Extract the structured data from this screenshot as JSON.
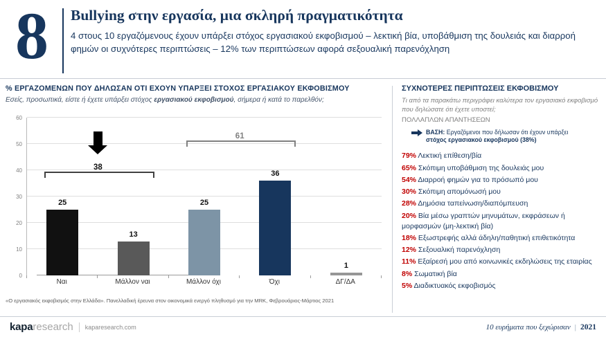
{
  "header": {
    "number": "8",
    "title": "Bullying στην εργασία, μια σκληρή πραγματικότητα",
    "subtitle": "4 στους 10 εργαζόμενους έχουν υπάρξει στόχος εργασιακού εκφοβισμού – λεκτική βία, υποβάθμιση της δουλειάς και διαρροή φημών οι συχνότερες περιπτώσεις – 12% των περιπτώσεων αφορά σεξουαλική παρενόχληση"
  },
  "chart_section": {
    "title": "% ΕΡΓΑΖΟΜΕΝΩΝ ΠΟΥ ΔΗΛΩΣΑΝ ΟΤΙ ΕΧΟΥΝ ΥΠΑΡΞΕΙ ΣΤΟΧΟΣ ΕΡΓΑΣΙΑΚΟΥ ΕΚΦΟΒΙΣΜΟΥ",
    "q_pre": "Εσείς, προσωπικά, είστε ή έχετε υπάρξει στόχος ",
    "q_bold": "εργασιακού εκφοβισμού",
    "q_post": ", σήμερα ή κατά το παρελθόν;",
    "footnote": "«Ο εργασιακός εκφοβισμός στην Ελλάδα». Πανελλαδική έρευνα στον οικονομικά ενεργό πληθυσμό για την MRK, Φεβρουάριος-Μάρτιος 2021"
  },
  "chart_data": {
    "type": "bar",
    "title": "% ΕΡΓΑΖΟΜΕΝΩΝ ΠΟΥ ΔΗΛΩΣΑΝ ΟΤΙ ΕΧΟΥΝ ΥΠΑΡΞΕΙ ΣΤΟΧΟΣ ΕΡΓΑΣΙΑΚΟΥ ΕΚΦΟΒΙΣΜΟΥ",
    "categories": [
      "Ναι",
      "Μάλλον ναι",
      "Μάλλον όχι",
      "Όχι",
      "ΔΓ/ΔΑ"
    ],
    "values": [
      25,
      13,
      25,
      36,
      1
    ],
    "bar_colors": [
      "#111111",
      "#595959",
      "#7d94a6",
      "#17365d",
      "#969696"
    ],
    "ylim": [
      0,
      60
    ],
    "yticks": [
      0,
      10,
      20,
      30,
      40,
      50,
      60
    ],
    "grid": true,
    "legend": "none",
    "annotations": [
      {
        "label": "38",
        "from": 0,
        "to": 1,
        "y": 37,
        "color": "#404040",
        "label_color": "#111111",
        "arrow": true
      },
      {
        "label": "61",
        "from": 2,
        "to": 3,
        "y": 49,
        "color": "#808080",
        "label_color": "#808080",
        "arrow": false
      }
    ]
  },
  "right_panel": {
    "title": "ΣΥΧΝΟΤΕΡΕΣ ΠΕΡΙΠΤΩΣΕΙΣ ΕΚΦΟΒΙΣΜΟΥ",
    "question": "Τι από τα παρακάτω περιγράφει καλύτερα τον εργασιακό εκφοβισμό που δηλώσατε ότι έχετε υποστεί;",
    "multi": "ΠΟΛΛΑΠΛΩΝ ΑΠΑΝΤΗΣΕΩΝ",
    "base_label": "ΒΑΣΗ:",
    "base_text1": " Εργαζόμενοι που δήλωσαν ότι έχουν υπάρξει ",
    "base_text2": "στόχος εργασιακού εκφοβισμού (38%)",
    "items": [
      {
        "pct": "79%",
        "label": "Λεκτική επίθεση/βία"
      },
      {
        "pct": "65%",
        "label": "Σκόπιμη υποβάθμιση της δουλειάς μου"
      },
      {
        "pct": "54%",
        "label": "Διαρροή φημών για το πρόσωπό μου"
      },
      {
        "pct": "30%",
        "label": "Σκόπιμη απομόνωσή μου"
      },
      {
        "pct": "28%",
        "label": "Δημόσια ταπείνωση/διαπόμπευση"
      },
      {
        "pct": "20%",
        "label": "Βία μέσω γραπτών μηνυμάτων, εκφράσεων ή μορφασμών (μη-λεκτική βία)"
      },
      {
        "pct": "18%",
        "label": "Εξωστρεφής αλλά άδηλη/παθητική επιθετικότητα"
      },
      {
        "pct": "12%",
        "label": "Σεξουαλική παρενόχληση"
      },
      {
        "pct": "11%",
        "label": "Εξαίρεσή μου από κοινωνικές εκδηλώσεις της εταιρίας"
      },
      {
        "pct": "8%",
        "label": "Σωματική βία"
      },
      {
        "pct": "5%",
        "label": "Διαδικτυακός εκφοβισμός"
      }
    ]
  },
  "footer": {
    "logo_bold": "kapa",
    "logo_light": "research",
    "site": "kaparesearch.com",
    "tagline": "10 ευρήματα που ξεχώρισαν",
    "separator": "|",
    "year": "2021"
  },
  "colors": {
    "navy": "#17365d",
    "red": "#c00000",
    "gray_text": "#7f7f7f"
  }
}
